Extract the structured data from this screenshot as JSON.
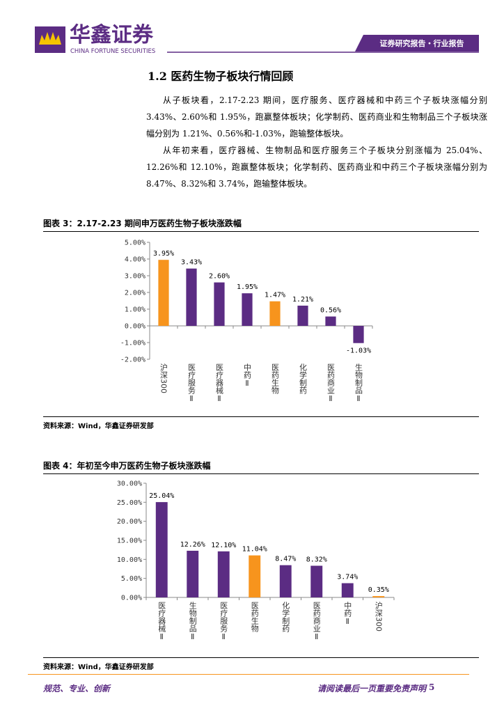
{
  "header": {
    "company": "华鑫证券",
    "company_en": "CHINA FORTUNE SECURITIES",
    "report_type": "证券研究报告・行业报告"
  },
  "section_title": "1.2 医药生物子板块行情回顾",
  "paragraphs": [
    "从子板块看，2.17-2.23 期间，医疗服务、医疗器械和中药三个子板块涨幅分别 3.43%、2.60%和 1.95%，跑赢整体板块；化学制药、医药商业和生物制品三个子板块涨幅分别为 1.21%、0.56%和-1.03%，跑输整体板块。",
    "从年初来看，医疗器械、生物制品和医疗服务三个子板块分别涨幅为 25.04%、12.26%和 12.10%，跑赢整体板块；化学制药、医药商业和中药三个子板块涨幅分别为 8.47%、8.32%和 3.74%，跑输整体板块。"
  ],
  "chart_data": [
    {
      "type": "bar",
      "title": "图表 3：2.17-2.23 期间申万医药生物子板块涨跌幅",
      "source": "资料来源：Wind，华鑫证券研发部",
      "categories": [
        "沪深300",
        "医疗服务Ⅱ",
        "医疗器械Ⅱ",
        "中药Ⅱ",
        "医药生物",
        "化学制药",
        "医药商业Ⅱ",
        "生物制品Ⅱ"
      ],
      "values": [
        3.95,
        3.43,
        2.6,
        1.95,
        1.47,
        1.21,
        0.56,
        -1.03
      ],
      "value_labels": [
        "3.95%",
        "3.43%",
        "2.60%",
        "1.95%",
        "1.47%",
        "1.21%",
        "0.56%",
        "-1.03%"
      ],
      "colors": [
        "#f7941d",
        "#5b2c83",
        "#5b2c83",
        "#5b2c83",
        "#f7941d",
        "#5b2c83",
        "#5b2c83",
        "#5b2c83"
      ],
      "ylim": [
        -2,
        5
      ],
      "yticks": [
        {
          "value": 5,
          "label": "5.00%"
        },
        {
          "value": 4,
          "label": "4.00%"
        },
        {
          "value": 3,
          "label": "3.00%"
        },
        {
          "value": 2,
          "label": "2.00%"
        },
        {
          "value": 1,
          "label": "1.00%"
        },
        {
          "value": 0,
          "label": "0.00%"
        },
        {
          "value": -1,
          "label": "-1.00%"
        },
        {
          "value": -2,
          "label": "-2.00%"
        }
      ]
    },
    {
      "type": "bar",
      "title": "图表 4：年初至今申万医药生物子板块涨跌幅",
      "source": "资料来源：Wind，华鑫证券研发部",
      "categories": [
        "医疗器械Ⅱ",
        "生物制品Ⅱ",
        "医疗服务Ⅱ",
        "医药生物",
        "化学制药",
        "医药商业Ⅱ",
        "中药Ⅱ",
        "沪深300"
      ],
      "values": [
        25.04,
        12.26,
        12.1,
        11.04,
        8.47,
        8.32,
        3.74,
        0.35
      ],
      "value_labels": [
        "25.04%",
        "12.26%",
        "12.10%",
        "11.04%",
        "8.47%",
        "8.32%",
        "3.74%",
        "0.35%"
      ],
      "colors": [
        "#5b2c83",
        "#5b2c83",
        "#5b2c83",
        "#f7941d",
        "#5b2c83",
        "#5b2c83",
        "#5b2c83",
        "#f7941d"
      ],
      "ylim": [
        0,
        30
      ],
      "yticks": [
        {
          "value": 30,
          "label": "30.00%"
        },
        {
          "value": 25,
          "label": "25.00%"
        },
        {
          "value": 20,
          "label": "20.00%"
        },
        {
          "value": 15,
          "label": "15.00%"
        },
        {
          "value": 10,
          "label": "10.00%"
        },
        {
          "value": 5,
          "label": "5.00%"
        },
        {
          "value": 0,
          "label": "0.00%"
        }
      ]
    }
  ],
  "footer": {
    "slogan": "规范、专业、创新",
    "disclaimer": "请阅读最后一页重要免责声明",
    "page_number": "5"
  }
}
